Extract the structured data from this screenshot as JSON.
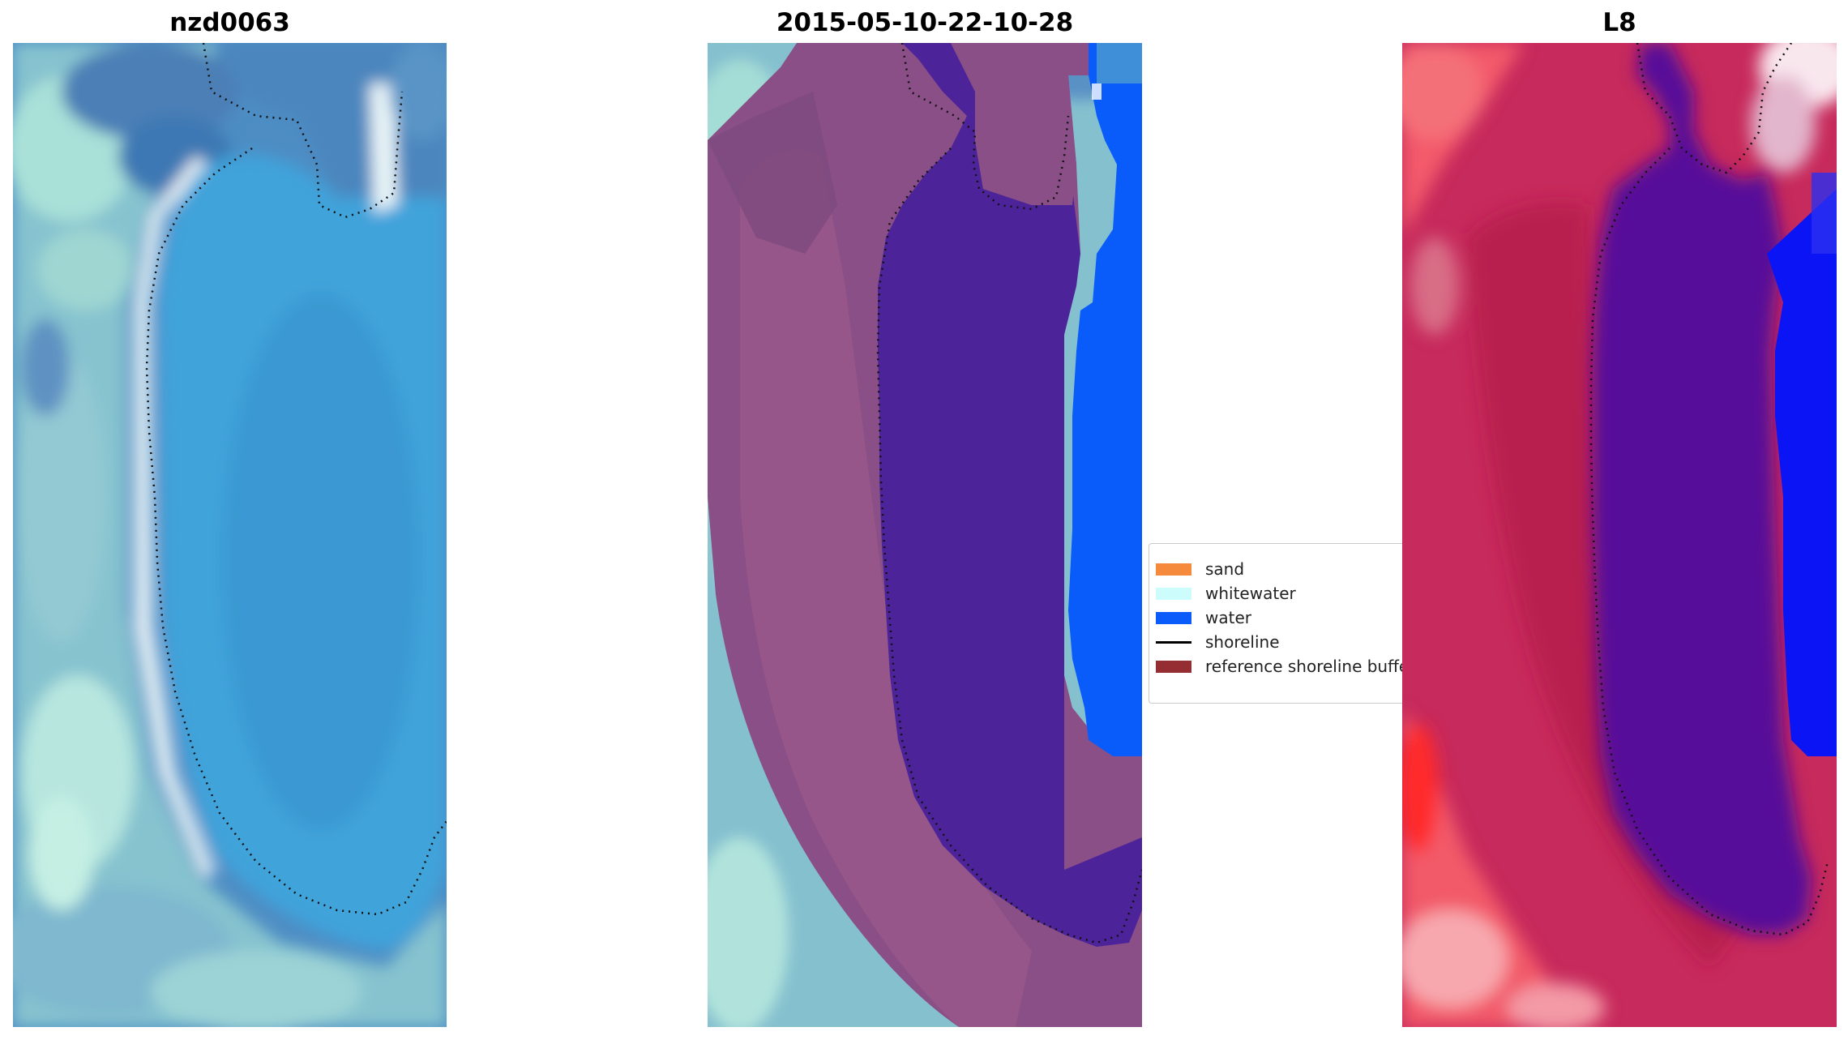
{
  "panels": [
    {
      "title": "nzd0063"
    },
    {
      "title": "2015-05-10-22-10-28"
    },
    {
      "title": "L8"
    }
  ],
  "legend": {
    "items": [
      {
        "label": "sand",
        "color": "#f58a3c",
        "kind": "patch"
      },
      {
        "label": "whitewater",
        "color": "#ccfcfc",
        "kind": "patch"
      },
      {
        "label": "water",
        "color": "#0a5cfa",
        "kind": "patch"
      },
      {
        "label": "shoreline",
        "color": "#000000",
        "kind": "line"
      },
      {
        "label": "reference shoreline buffer",
        "color": "#952e33",
        "kind": "patch"
      }
    ]
  },
  "colors": {
    "lagoon": "#3fa3da",
    "land_teal": "#8ccfcf",
    "buffer_purple": "#8a4f86",
    "water_classified": "#4d239a",
    "ocean_blue": "#0a5cfa",
    "index_red": "#c72a5c",
    "index_blue": "#0a14f5",
    "index_dark": "#560d9a"
  }
}
